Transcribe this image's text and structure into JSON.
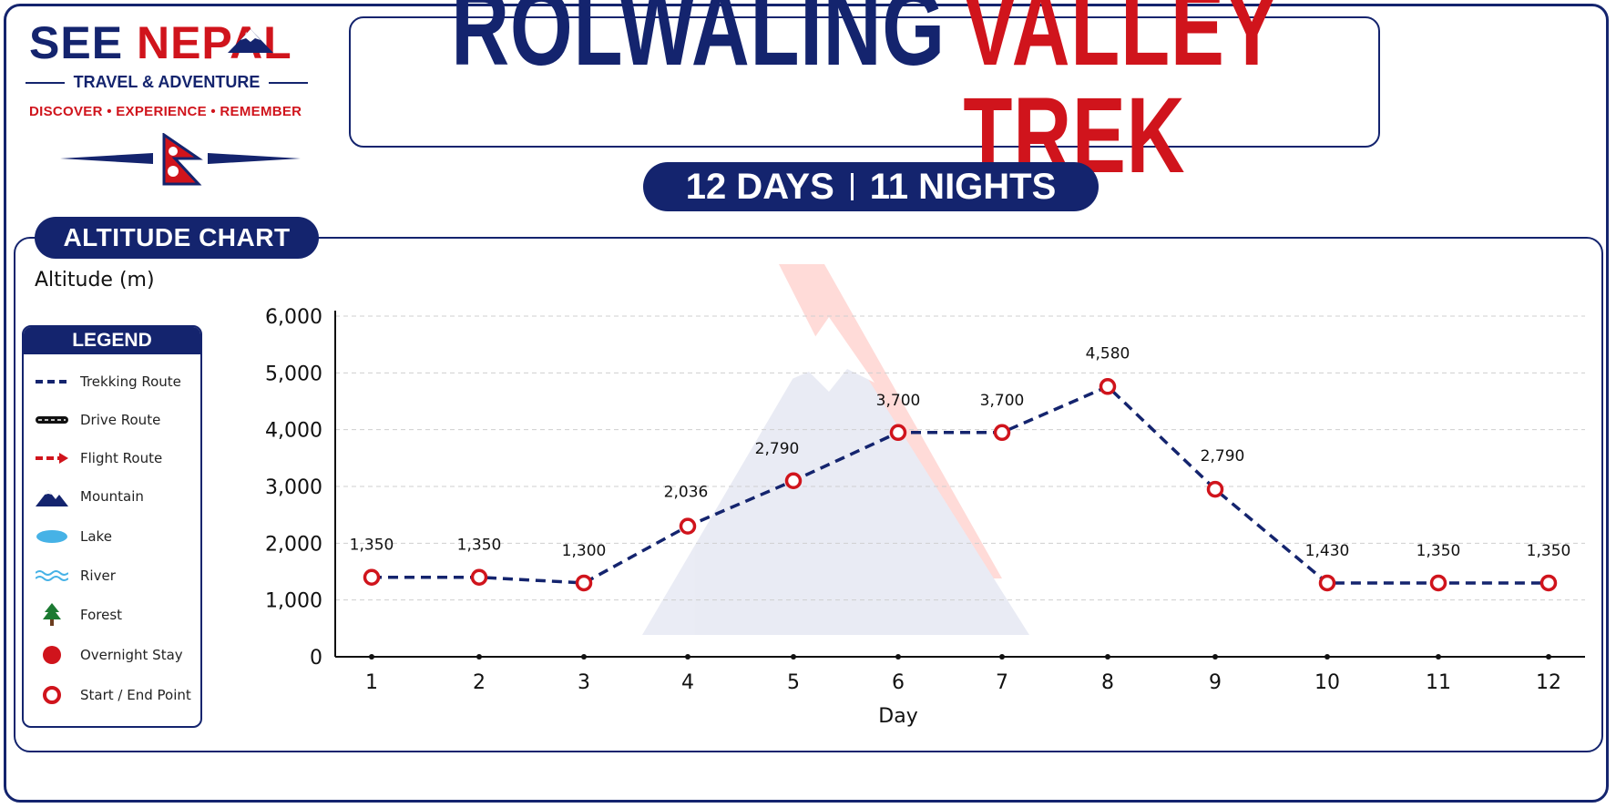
{
  "brand": {
    "see": "SEE",
    "nepal": "NEPAL",
    "tagline": "TRAVEL & ADVENTURE",
    "motto": "DISCOVER • EXPERIENCE • REMEMBER"
  },
  "title": {
    "part1": "ROLWALING",
    "part2": "VALLEY TREK"
  },
  "duration": {
    "days": "12 DAYS",
    "nights": "11 NIGHTS"
  },
  "panel": {
    "tab": "ALTITUDE CHART"
  },
  "legend": {
    "title": "LEGEND",
    "items": [
      {
        "label": "Trekking Route",
        "icon": "dashed-line-icon"
      },
      {
        "label": "Drive Route",
        "icon": "road-icon"
      },
      {
        "label": "Flight Route",
        "icon": "flight-arrow-icon"
      },
      {
        "label": "Mountain",
        "icon": "mountain-icon"
      },
      {
        "label": "Lake",
        "icon": "lake-icon"
      },
      {
        "label": "River",
        "icon": "river-icon"
      },
      {
        "label": "Forest",
        "icon": "tree-icon"
      },
      {
        "label": "Overnight Stay",
        "icon": "filled-dot-icon"
      },
      {
        "label": "Start / End Point",
        "icon": "ring-icon"
      }
    ]
  },
  "colors": {
    "navy": "#14246e",
    "red": "#d0141c"
  },
  "chart_data": {
    "type": "line",
    "title": "",
    "xlabel": "Day",
    "ylabel": "Altitude (m)",
    "x": [
      1,
      2,
      3,
      4,
      5,
      6,
      7,
      8,
      9,
      10,
      11,
      12
    ],
    "values": [
      1350,
      1350,
      1300,
      2036,
      2790,
      3700,
      3700,
      4580,
      2790,
      1430,
      1350,
      1350
    ],
    "point_values": [
      1400,
      1400,
      1300,
      2300,
      3100,
      3950,
      3950,
      4760,
      2950,
      1300,
      1300,
      1300
    ],
    "data_labels": [
      "1,350",
      "1,350",
      "1,300",
      "2,036",
      "2,790",
      "3,700",
      "3,700",
      "4,580",
      "2,790",
      "1,430",
      "1,350",
      "1,350"
    ],
    "yticks": [
      "0",
      "1,000",
      "2,000",
      "3,000",
      "4,000",
      "5,000",
      "6,000"
    ],
    "ylim": [
      0,
      6000
    ],
    "grid": true,
    "line_style": "dashed",
    "marker": "red-ring"
  }
}
